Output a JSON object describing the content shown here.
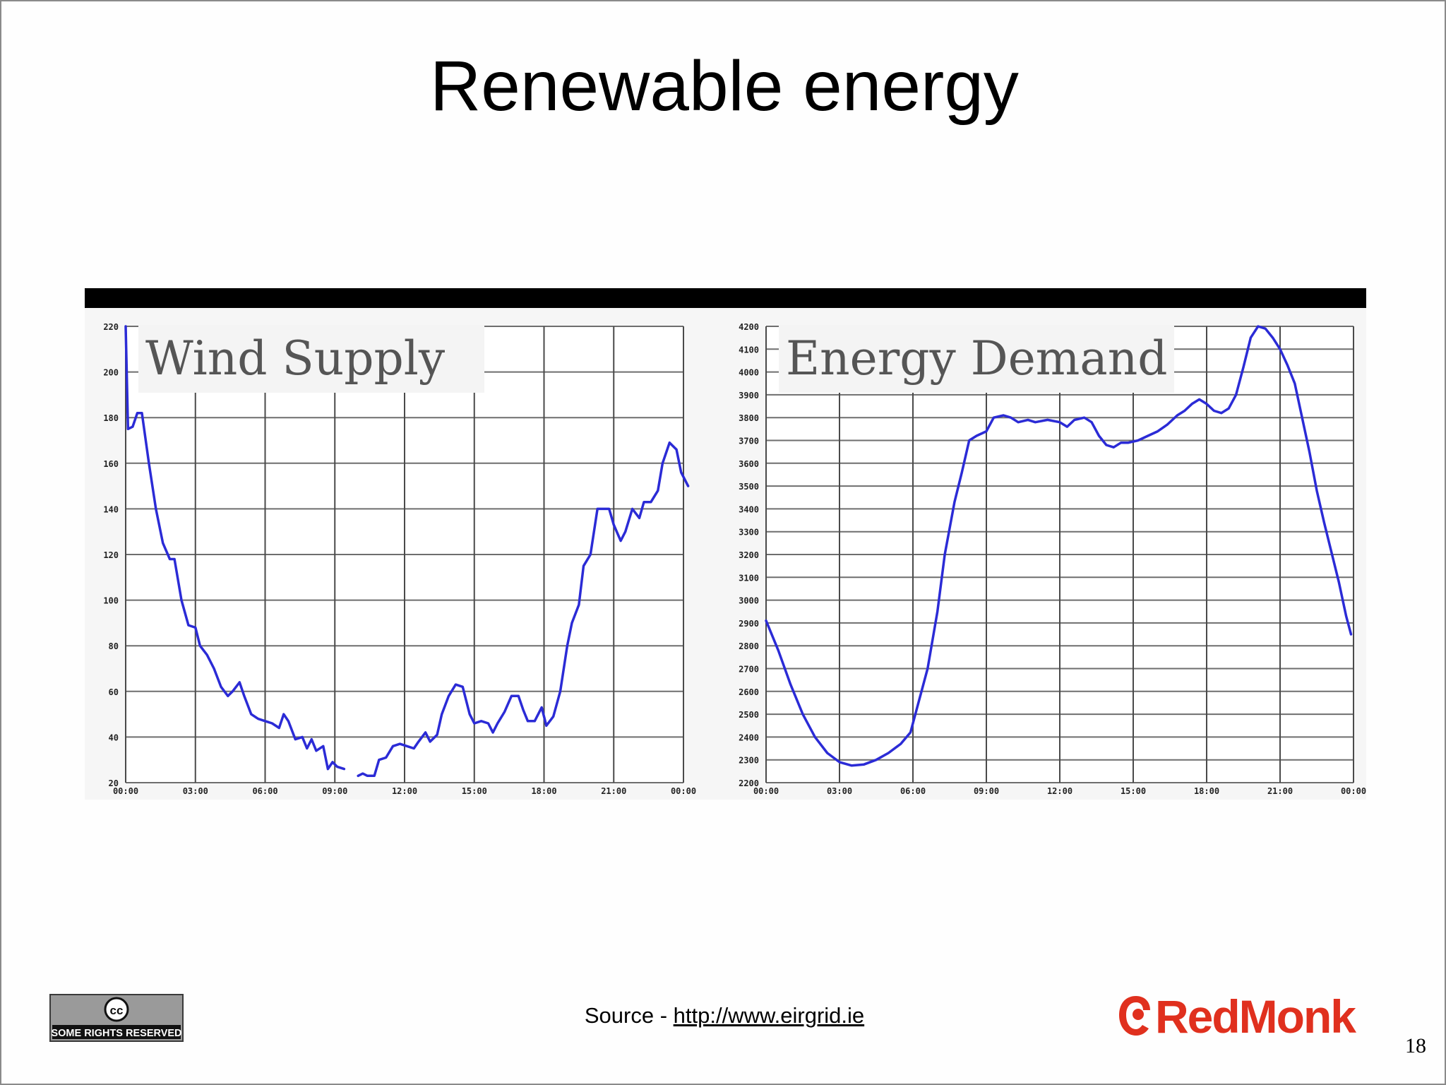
{
  "slide": {
    "title": "Renewable energy",
    "source_label": "Source - ",
    "source_link": "http://www.eirgrid.ie",
    "page_number": "18",
    "license_text": "SOME RIGHTS RESERVED",
    "license_icon": "cc-icon",
    "logo_text": "RedMonk",
    "colors": {
      "line": "#2b2bd6",
      "logo": "#e0301e",
      "header_bar": "#000000"
    }
  },
  "chart_data": [
    {
      "type": "line",
      "title": "Wind Supply",
      "x_labels": [
        "00:00",
        "03:00",
        "06:00",
        "09:00",
        "12:00",
        "15:00",
        "18:00",
        "21:00",
        "00:00"
      ],
      "ylim": [
        20,
        220
      ],
      "yticks": [
        20,
        40,
        60,
        80,
        100,
        120,
        140,
        160,
        180,
        200,
        220
      ],
      "grid": true,
      "series": [
        {
          "color": "#2b2bd6",
          "segments": [
            [
              [
                0.0,
                220
              ],
              [
                0.1,
                175
              ],
              [
                0.3,
                176
              ],
              [
                0.5,
                182
              ],
              [
                0.7,
                182
              ],
              [
                1.0,
                160
              ],
              [
                1.3,
                140
              ],
              [
                1.6,
                125
              ],
              [
                1.9,
                118
              ],
              [
                2.1,
                118
              ],
              [
                2.4,
                100
              ],
              [
                2.7,
                89
              ],
              [
                3.0,
                88
              ],
              [
                3.2,
                80
              ],
              [
                3.5,
                76
              ],
              [
                3.8,
                70
              ],
              [
                4.1,
                62
              ],
              [
                4.4,
                58
              ],
              [
                4.6,
                60
              ],
              [
                4.9,
                64
              ],
              [
                5.1,
                58
              ],
              [
                5.4,
                50
              ],
              [
                5.7,
                48
              ],
              [
                6.0,
                47
              ],
              [
                6.3,
                46
              ],
              [
                6.6,
                44
              ],
              [
                6.8,
                50
              ],
              [
                7.0,
                47
              ],
              [
                7.3,
                39
              ],
              [
                7.6,
                40
              ],
              [
                7.8,
                35
              ],
              [
                8.0,
                39
              ],
              [
                8.2,
                34
              ],
              [
                8.5,
                36
              ],
              [
                8.7,
                26
              ],
              [
                8.9,
                29
              ],
              [
                9.1,
                27
              ],
              [
                9.4,
                26
              ]
            ],
            [
              [
                10.0,
                23
              ],
              [
                10.2,
                24
              ],
              [
                10.4,
                23
              ],
              [
                10.7,
                23
              ],
              [
                10.9,
                30
              ],
              [
                11.2,
                31
              ],
              [
                11.5,
                36
              ],
              [
                11.8,
                37
              ],
              [
                12.1,
                36
              ],
              [
                12.4,
                35
              ],
              [
                12.6,
                38
              ],
              [
                12.9,
                42
              ],
              [
                13.1,
                38
              ],
              [
                13.4,
                41
              ],
              [
                13.6,
                50
              ],
              [
                13.9,
                58
              ],
              [
                14.2,
                63
              ],
              [
                14.5,
                62
              ],
              [
                14.8,
                50
              ],
              [
                15.0,
                46
              ],
              [
                15.3,
                47
              ],
              [
                15.6,
                46
              ],
              [
                15.8,
                42
              ],
              [
                16.0,
                46
              ],
              [
                16.3,
                51
              ],
              [
                16.6,
                58
              ],
              [
                16.9,
                58
              ],
              [
                17.1,
                52
              ],
              [
                17.3,
                47
              ],
              [
                17.6,
                47
              ],
              [
                17.9,
                53
              ],
              [
                18.1,
                45
              ],
              [
                18.4,
                49
              ],
              [
                18.7,
                60
              ],
              [
                19.0,
                80
              ],
              [
                19.2,
                90
              ],
              [
                19.5,
                98
              ],
              [
                19.7,
                115
              ],
              [
                20.0,
                120
              ],
              [
                20.3,
                140
              ],
              [
                20.5,
                140
              ],
              [
                20.8,
                140
              ],
              [
                21.0,
                133
              ],
              [
                21.3,
                126
              ],
              [
                21.5,
                130
              ],
              [
                21.8,
                140
              ],
              [
                22.1,
                136
              ],
              [
                22.3,
                143
              ],
              [
                22.6,
                143
              ],
              [
                22.9,
                148
              ],
              [
                23.1,
                160
              ],
              [
                23.4,
                169
              ],
              [
                23.7,
                166
              ],
              [
                23.9,
                156
              ],
              [
                24.2,
                150
              ]
            ]
          ]
        }
      ]
    },
    {
      "type": "line",
      "title": "Energy Demand",
      "x_labels": [
        "00:00",
        "03:00",
        "06:00",
        "09:00",
        "12:00",
        "15:00",
        "18:00",
        "21:00",
        "00:00"
      ],
      "ylim": [
        2200,
        4200
      ],
      "yticks": [
        2200,
        2300,
        2400,
        2500,
        2600,
        2700,
        2800,
        2900,
        3000,
        3100,
        3200,
        3300,
        3400,
        3500,
        3600,
        3700,
        3800,
        3900,
        4000,
        4100,
        4200
      ],
      "grid": true,
      "series": [
        {
          "color": "#2b2bd6",
          "segments": [
            [
              [
                0.0,
                2910
              ],
              [
                0.5,
                2780
              ],
              [
                1.0,
                2630
              ],
              [
                1.5,
                2500
              ],
              [
                2.0,
                2400
              ],
              [
                2.5,
                2330
              ],
              [
                3.0,
                2290
              ],
              [
                3.5,
                2275
              ],
              [
                4.0,
                2280
              ],
              [
                4.5,
                2300
              ],
              [
                5.0,
                2330
              ],
              [
                5.5,
                2370
              ],
              [
                5.9,
                2420
              ],
              [
                6.2,
                2540
              ],
              [
                6.6,
                2700
              ],
              [
                7.0,
                2950
              ],
              [
                7.3,
                3200
              ],
              [
                7.7,
                3430
              ],
              [
                8.0,
                3560
              ],
              [
                8.3,
                3700
              ],
              [
                8.6,
                3720
              ],
              [
                9.0,
                3740
              ],
              [
                9.3,
                3800
              ],
              [
                9.7,
                3810
              ],
              [
                10.0,
                3800
              ],
              [
                10.3,
                3780
              ],
              [
                10.7,
                3790
              ],
              [
                11.0,
                3780
              ],
              [
                11.5,
                3790
              ],
              [
                12.0,
                3780
              ],
              [
                12.3,
                3760
              ],
              [
                12.6,
                3790
              ],
              [
                13.0,
                3800
              ],
              [
                13.3,
                3780
              ],
              [
                13.6,
                3720
              ],
              [
                13.9,
                3680
              ],
              [
                14.2,
                3670
              ],
              [
                14.5,
                3690
              ],
              [
                14.8,
                3690
              ],
              [
                15.2,
                3700
              ],
              [
                15.6,
                3720
              ],
              [
                16.0,
                3740
              ],
              [
                16.4,
                3770
              ],
              [
                16.8,
                3810
              ],
              [
                17.1,
                3830
              ],
              [
                17.4,
                3860
              ],
              [
                17.7,
                3880
              ],
              [
                18.0,
                3860
              ],
              [
                18.3,
                3830
              ],
              [
                18.6,
                3820
              ],
              [
                18.9,
                3840
              ],
              [
                19.2,
                3900
              ],
              [
                19.5,
                4020
              ],
              [
                19.8,
                4150
              ],
              [
                20.1,
                4200
              ],
              [
                20.4,
                4190
              ],
              [
                20.7,
                4150
              ],
              [
                21.0,
                4100
              ],
              [
                21.3,
                4030
              ],
              [
                21.6,
                3950
              ],
              [
                21.9,
                3800
              ],
              [
                22.2,
                3650
              ],
              [
                22.5,
                3480
              ],
              [
                22.8,
                3340
              ],
              [
                23.1,
                3210
              ],
              [
                23.4,
                3080
              ],
              [
                23.7,
                2930
              ],
              [
                23.9,
                2850
              ]
            ]
          ]
        }
      ]
    }
  ]
}
